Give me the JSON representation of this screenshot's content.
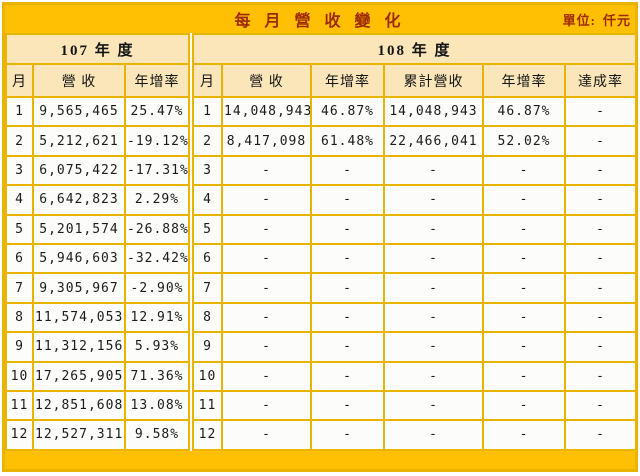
{
  "colors": {
    "title_bg": "#FFC003",
    "header_bg": "#FBE6BA",
    "cell_bg": "#FCFCFA",
    "grid_border": "#E9B400",
    "title_text": "#9E2B00",
    "data_text": "#1B1B1B"
  },
  "title_bar": {
    "title": "每 月 營 收 變 化",
    "unit_label": "單位:",
    "unit_value": "仟元"
  },
  "sections": [
    {
      "label": "107 年 度"
    },
    {
      "label": "108 年 度"
    }
  ],
  "columns": [
    "月",
    "營 收",
    "年增率",
    "月",
    "營 收",
    "年增率",
    "累計營收",
    "年增率",
    "達成率"
  ],
  "chart_data": {
    "type": "table",
    "title": "每月營收變化",
    "unit": "仟元",
    "section_labels": [
      "107 年度",
      "108 年度"
    ],
    "column_headers": [
      "月",
      "營收",
      "年增率",
      "月",
      "營收",
      "年增率",
      "累計營收",
      "年增率",
      "達成率"
    ],
    "rows": [
      [
        "1",
        "9,565,465",
        "25.47%",
        "1",
        "14,048,943",
        "46.87%",
        "14,048,943",
        "46.87%",
        "-"
      ],
      [
        "2",
        "5,212,621",
        "-19.12%",
        "2",
        "8,417,098",
        "61.48%",
        "22,466,041",
        "52.02%",
        "-"
      ],
      [
        "3",
        "6,075,422",
        "-17.31%",
        "3",
        "-",
        "-",
        "-",
        "-",
        "-"
      ],
      [
        "4",
        "6,642,823",
        "2.29%",
        "4",
        "-",
        "-",
        "-",
        "-",
        "-"
      ],
      [
        "5",
        "5,201,574",
        "-26.88%",
        "5",
        "-",
        "-",
        "-",
        "-",
        "-"
      ],
      [
        "6",
        "5,946,603",
        "-32.42%",
        "6",
        "-",
        "-",
        "-",
        "-",
        "-"
      ],
      [
        "7",
        "9,305,967",
        "-2.90%",
        "7",
        "-",
        "-",
        "-",
        "-",
        "-"
      ],
      [
        "8",
        "11,574,053",
        "12.91%",
        "8",
        "-",
        "-",
        "-",
        "-",
        "-"
      ],
      [
        "9",
        "11,312,156",
        "5.93%",
        "9",
        "-",
        "-",
        "-",
        "-",
        "-"
      ],
      [
        "10",
        "17,265,905",
        "71.36%",
        "10",
        "-",
        "-",
        "-",
        "-",
        "-"
      ],
      [
        "11",
        "12,851,608",
        "13.08%",
        "11",
        "-",
        "-",
        "-",
        "-",
        "-"
      ],
      [
        "12",
        "12,527,311",
        "9.58%",
        "12",
        "-",
        "-",
        "-",
        "-",
        "-"
      ]
    ]
  }
}
